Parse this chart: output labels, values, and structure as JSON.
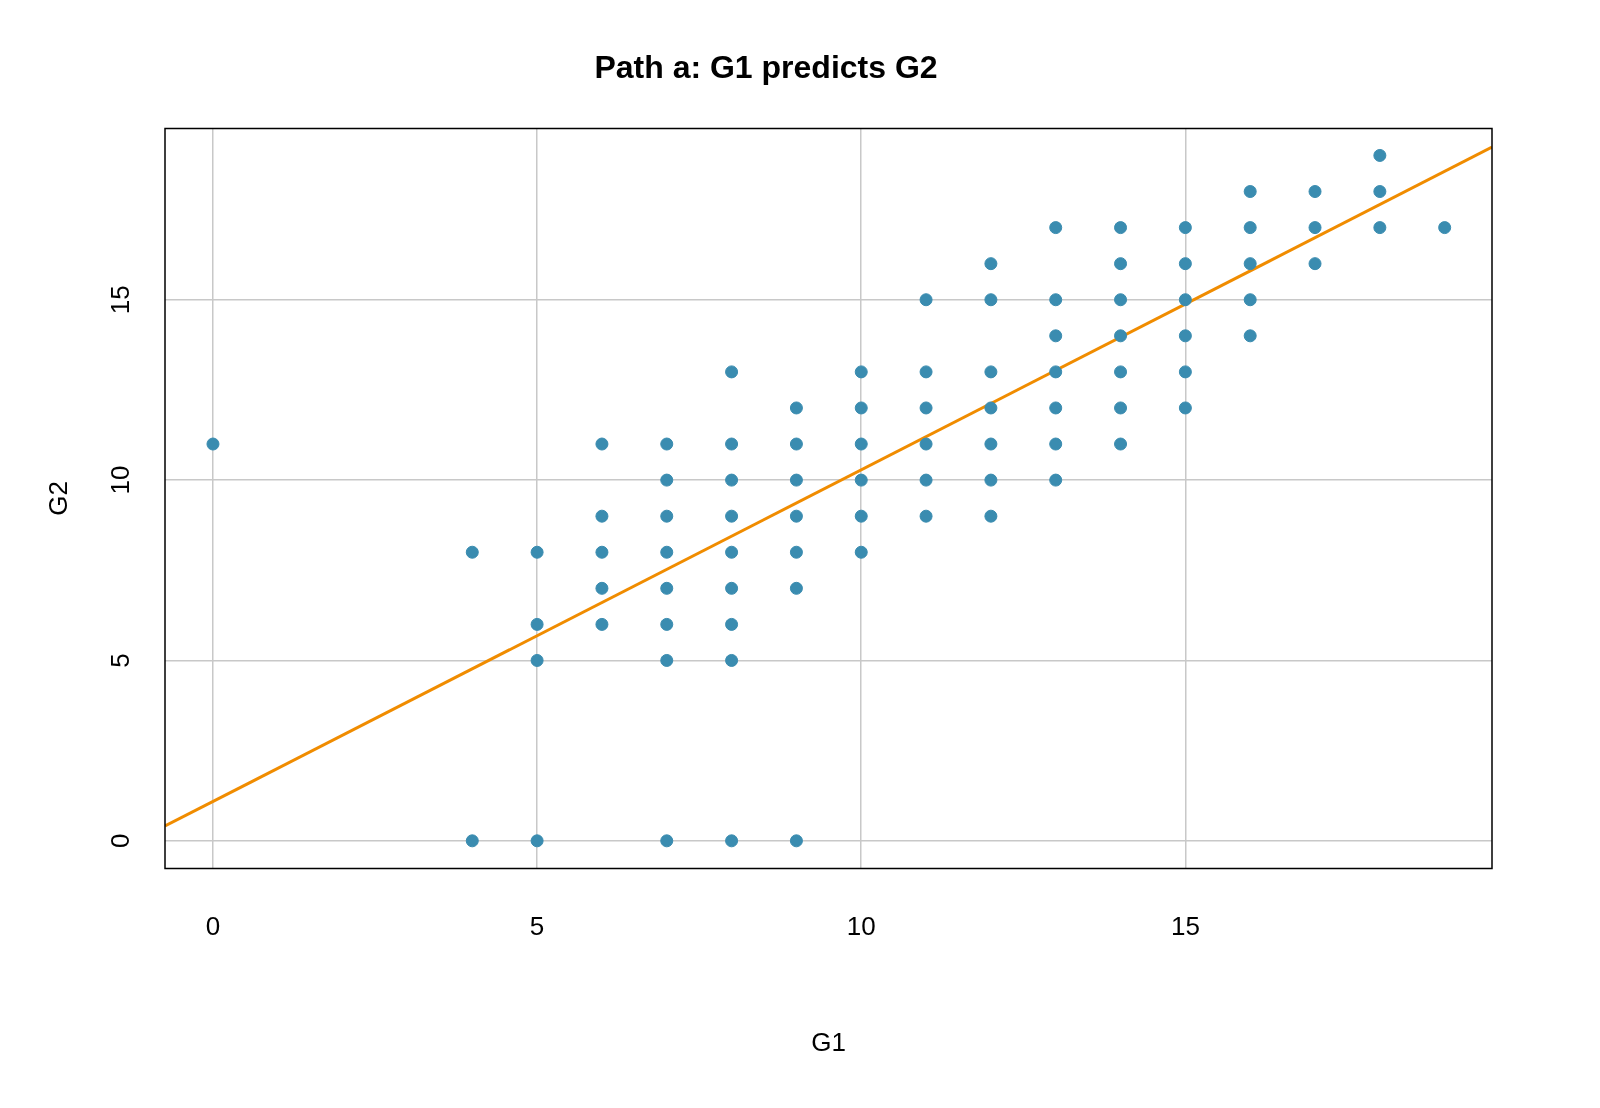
{
  "chart_data": {
    "type": "scatter",
    "title": "Path a: G1 predicts G2",
    "xlabel": "G1",
    "ylabel": "G2",
    "xlim": [
      -0.74,
      19.73
    ],
    "ylim": [
      -0.77,
      19.75
    ],
    "xticks": [
      0,
      5,
      10,
      15
    ],
    "yticks": [
      0,
      5,
      10,
      15
    ],
    "grid": true,
    "legend": false,
    "series": [
      {
        "type": "scatter",
        "marker": "circle",
        "color": "#3a8cb0",
        "x": [
          0,
          4,
          4,
          5,
          5,
          5,
          5,
          6,
          6,
          6,
          6,
          6,
          7,
          7,
          7,
          7,
          7,
          7,
          7,
          7,
          8,
          8,
          8,
          8,
          8,
          8,
          8,
          8,
          8,
          9,
          9,
          9,
          9,
          9,
          9,
          9,
          10,
          10,
          10,
          10,
          10,
          10,
          11,
          11,
          11,
          11,
          11,
          11,
          12,
          12,
          12,
          12,
          12,
          12,
          12,
          13,
          13,
          13,
          13,
          13,
          13,
          13,
          14,
          14,
          14,
          14,
          14,
          14,
          14,
          15,
          15,
          15,
          15,
          15,
          15,
          16,
          16,
          16,
          16,
          16,
          17,
          17,
          17,
          18,
          18,
          18,
          19
        ],
        "values": [
          11,
          8,
          0,
          8,
          6,
          5,
          0,
          11,
          9,
          8,
          7,
          6,
          11,
          10,
          9,
          8,
          7,
          6,
          5,
          0,
          13,
          11,
          10,
          9,
          8,
          7,
          6,
          5,
          0,
          12,
          11,
          10,
          9,
          8,
          7,
          0,
          13,
          12,
          11,
          10,
          9,
          8,
          15,
          13,
          12,
          11,
          10,
          9,
          16,
          15,
          13,
          12,
          11,
          10,
          9,
          17,
          15,
          14,
          13,
          12,
          11,
          10,
          17,
          16,
          15,
          14,
          13,
          12,
          11,
          17,
          16,
          15,
          14,
          13,
          12,
          18,
          17,
          16,
          15,
          14,
          18,
          17,
          16,
          19,
          18,
          17,
          17
        ]
      },
      {
        "type": "line",
        "marker": "none",
        "color": "#f08c00",
        "x": [
          -0.74,
          19.73
        ],
        "values": [
          0.41,
          19.23
        ]
      }
    ]
  }
}
